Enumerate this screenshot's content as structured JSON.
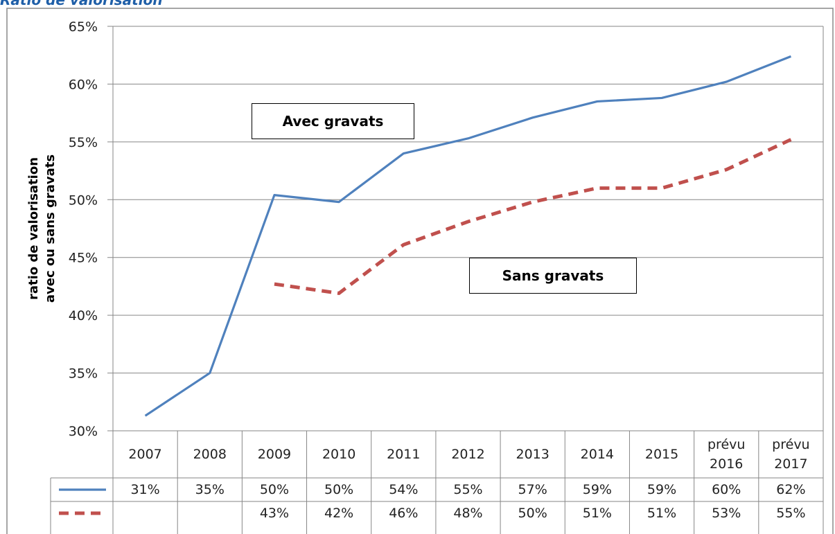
{
  "chart_data": {
    "type": "line",
    "title": "Ratio de valorisation",
    "ylabel": [
      "ratio de valorisation",
      "avec ou sans gravats"
    ],
    "categories": [
      "2007",
      "2008",
      "2009",
      "2010",
      "2011",
      "2012",
      "2013",
      "2014",
      "2015",
      "prévu\n2016",
      "prévu\n2017"
    ],
    "series": [
      {
        "color": "#4f81bd",
        "dashed": false,
        "values": [
          31.3,
          35.0,
          50.4,
          49.8,
          54.0,
          55.3,
          57.1,
          58.5,
          58.8,
          60.2,
          62.4
        ],
        "value_labels": [
          "31%",
          "35%",
          "50%",
          "50%",
          "54%",
          "55%",
          "57%",
          "59%",
          "59%",
          "60%",
          "62%"
        ]
      },
      {
        "color": "#c0504d",
        "dashed": true,
        "values": [
          null,
          null,
          42.7,
          41.9,
          46.1,
          48.1,
          49.8,
          51.0,
          51.0,
          52.6,
          55.2
        ],
        "value_labels": [
          null,
          null,
          "43%",
          "42%",
          "46%",
          "48%",
          "50%",
          "51%",
          "51%",
          "53%",
          "55%"
        ]
      }
    ],
    "annotations": [
      "Avec gravats",
      "Sans gravats"
    ],
    "ylim": [
      30,
      65
    ],
    "yticks": [
      {
        "value": 30,
        "label": "30%"
      },
      {
        "value": 35,
        "label": "35%"
      },
      {
        "value": 40,
        "label": "40%"
      },
      {
        "value": 45,
        "label": "45%"
      },
      {
        "value": 50,
        "label": "50%"
      },
      {
        "value": 55,
        "label": "55%"
      },
      {
        "value": 60,
        "label": "60%"
      },
      {
        "value": 65,
        "label": "65%"
      }
    ],
    "grid": true,
    "data_table": true
  }
}
